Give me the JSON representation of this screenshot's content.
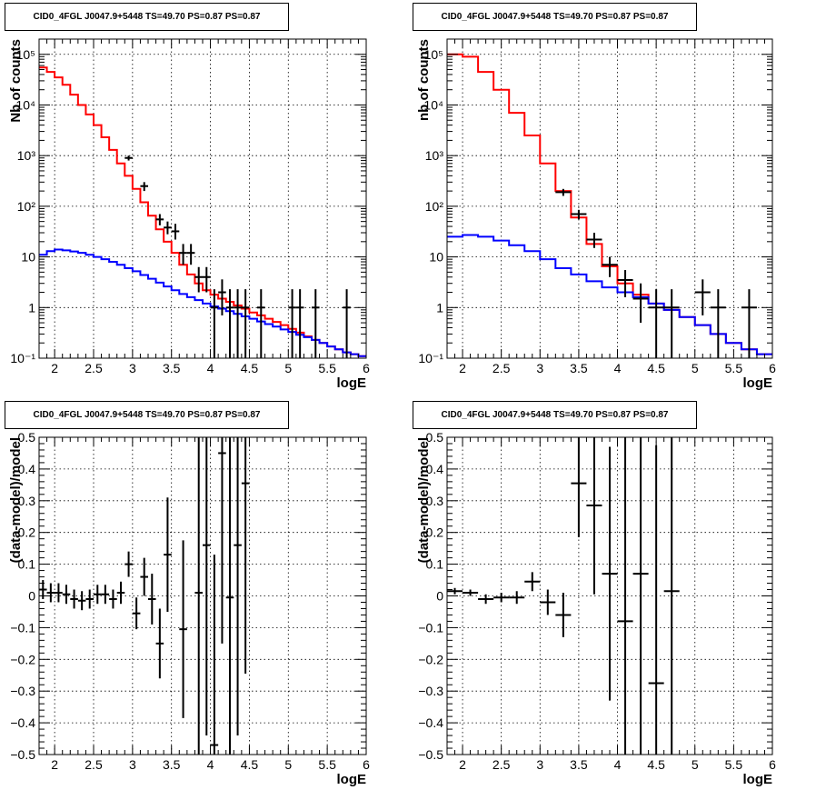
{
  "chart_data": [
    {
      "type": "line",
      "panel": "top-left",
      "title": "CID0_4FGL J0047.9+5448 TS=49.70 PS=0.87 PS=0.87",
      "xlabel": "logE",
      "ylabel": "Nb of counts",
      "xlim": [
        1.8,
        6
      ],
      "ylim": [
        0.1,
        200000
      ],
      "yscale": "log",
      "grid": true,
      "x_ticks": [
        "2",
        "2.5",
        "3",
        "3.5",
        "4",
        "4.5",
        "5",
        "5.5",
        "6"
      ],
      "y_ticks": [
        "10⁻¹",
        "1",
        "10",
        "10²",
        "10³",
        "10⁴",
        "10⁵"
      ],
      "series": [
        {
          "style": "step",
          "color": "#ff0000",
          "edges": [
            1.8,
            1.9,
            2.0,
            2.1,
            2.2,
            2.3,
            2.4,
            2.5,
            2.6,
            2.7,
            2.8,
            2.9,
            3.0,
            3.1,
            3.2,
            3.3,
            3.4,
            3.5,
            3.6,
            3.7,
            3.8,
            3.9,
            4.0,
            4.1,
            4.2,
            4.3,
            4.4,
            4.5,
            4.6,
            4.7,
            4.8,
            4.9,
            5.0,
            5.1,
            5.2,
            5.3,
            5.4,
            5.5,
            5.6,
            5.7,
            5.8,
            5.9,
            6.0
          ],
          "values": [
            55000,
            45000,
            35000,
            25000,
            16000,
            10000,
            6500,
            4000,
            2300,
            1300,
            700,
            400,
            220,
            120,
            65,
            35,
            20,
            12,
            7,
            4.5,
            3,
            2.2,
            1.8,
            1.5,
            1.3,
            1.1,
            0.95,
            0.8,
            0.7,
            0.6,
            0.52,
            0.45,
            0.38,
            0.32,
            0.27,
            0.23,
            0.2,
            0.17,
            0.15,
            0.13,
            0.12,
            0.11
          ]
        },
        {
          "style": "step",
          "color": "#0000ff",
          "edges": [
            1.8,
            1.9,
            2.0,
            2.1,
            2.2,
            2.3,
            2.4,
            2.5,
            2.6,
            2.7,
            2.8,
            2.9,
            3.0,
            3.1,
            3.2,
            3.3,
            3.4,
            3.5,
            3.6,
            3.7,
            3.8,
            3.9,
            4.0,
            4.1,
            4.2,
            4.3,
            4.4,
            4.5,
            4.6,
            4.7,
            4.8,
            4.9,
            5.0,
            5.1,
            5.2,
            5.3,
            5.4,
            5.5,
            5.6,
            5.7,
            5.8,
            5.9,
            6.0
          ],
          "values": [
            11,
            13,
            14,
            13.5,
            12.8,
            12,
            11,
            10,
            9,
            8,
            7,
            6,
            5.2,
            4.4,
            3.7,
            3.1,
            2.6,
            2.2,
            1.85,
            1.6,
            1.4,
            1.2,
            1.05,
            0.95,
            0.85,
            0.75,
            0.67,
            0.6,
            0.53,
            0.47,
            0.42,
            0.37,
            0.33,
            0.29,
            0.26,
            0.23,
            0.2,
            0.17,
            0.15,
            0.13,
            0.12,
            0.11
          ]
        },
        {
          "style": "points",
          "color": "#000000",
          "x": [
            2.95,
            3.15,
            3.35,
            3.45,
            3.55,
            3.65,
            3.75,
            3.85,
            3.95,
            4.05,
            4.15,
            4.25,
            4.35,
            4.45,
            4.65,
            5.05,
            5.15,
            5.35,
            5.75
          ],
          "xerr": 0.05,
          "y": [
            900,
            250,
            55,
            38,
            32,
            12,
            12,
            4,
            4,
            1,
            2,
            1,
            1,
            1,
            1,
            1,
            1,
            1,
            1
          ],
          "ylow": [
            800,
            200,
            42,
            28,
            22,
            7,
            7,
            2,
            2,
            0.1,
            0.7,
            0.1,
            0.1,
            0.1,
            0.1,
            0.1,
            0.1,
            0.1,
            0.1
          ],
          "yhigh": [
            1000,
            300,
            70,
            50,
            45,
            18,
            18,
            6.3,
            6.3,
            2.3,
            3.6,
            2.3,
            2.3,
            2.3,
            2.3,
            2.3,
            2.3,
            2.3,
            2.3
          ]
        }
      ]
    },
    {
      "type": "line",
      "panel": "top-right",
      "title": "CID0_4FGL J0047.9+5448 TS=49.70 PS=0.87 PS=0.87",
      "xlabel": "logE",
      "ylabel": "nb of counts",
      "xlim": [
        1.8,
        6
      ],
      "ylim": [
        0.1,
        200000
      ],
      "yscale": "log",
      "grid": true,
      "x_ticks": [
        "2",
        "2.5",
        "3",
        "3.5",
        "4",
        "4.5",
        "5",
        "5.5",
        "6"
      ],
      "y_ticks": [
        "10⁻¹",
        "1",
        "10",
        "10²",
        "10³",
        "10⁴",
        "10⁵"
      ],
      "series": [
        {
          "style": "step",
          "color": "#ff0000",
          "edges": [
            1.8,
            2.0,
            2.2,
            2.4,
            2.6,
            2.8,
            3.0,
            3.2,
            3.4,
            3.6,
            3.8,
            4.0,
            4.2,
            4.4,
            4.6,
            4.8,
            5.0,
            5.2,
            5.4,
            5.6,
            5.8,
            6.0
          ],
          "values": [
            100000,
            90000,
            45000,
            20000,
            7000,
            2500,
            700,
            200,
            60,
            18,
            6.5,
            3,
            1.8,
            1.2,
            0.9,
            0.65,
            0.45,
            0.3,
            0.2,
            0.15,
            0.12
          ],
          "values_note": ""
        },
        {
          "style": "step",
          "color": "#0000ff",
          "edges": [
            1.8,
            2.0,
            2.2,
            2.4,
            2.6,
            2.8,
            3.0,
            3.2,
            3.4,
            3.6,
            3.8,
            4.0,
            4.2,
            4.4,
            4.6,
            4.8,
            5.0,
            5.2,
            5.4,
            5.6,
            5.8,
            6.0
          ],
          "values": [
            25,
            27,
            25,
            21,
            17,
            13,
            9,
            6,
            4.5,
            3.3,
            2.5,
            2,
            1.6,
            1.2,
            0.9,
            0.65,
            0.45,
            0.3,
            0.2,
            0.15,
            0.12
          ]
        },
        {
          "style": "points",
          "color": "#000000",
          "x": [
            3.3,
            3.5,
            3.7,
            3.9,
            4.1,
            4.3,
            4.5,
            4.7,
            5.1,
            5.3,
            5.7
          ],
          "xerr": 0.1,
          "y": [
            190,
            70,
            22,
            7,
            3.5,
            1.5,
            1,
            1,
            2,
            1,
            1
          ],
          "ylow": [
            160,
            55,
            15,
            4,
            1.6,
            0.5,
            0.1,
            0.1,
            0.7,
            0.1,
            0.1
          ],
          "yhigh": [
            220,
            85,
            30,
            10,
            5.5,
            3,
            2.3,
            2.3,
            3.6,
            2.3,
            2.3
          ]
        }
      ]
    },
    {
      "type": "scatter",
      "panel": "bottom-left",
      "title": "CID0_4FGL J0047.9+5448 TS=49.70 PS=0.87 PS=0.87",
      "xlabel": "logE",
      "ylabel": "(data-model)/model",
      "xlim": [
        1.8,
        6
      ],
      "ylim": [
        -0.5,
        0.5
      ],
      "grid": true,
      "x_ticks": [
        "2",
        "2.5",
        "3",
        "3.5",
        "4",
        "4.5",
        "5",
        "5.5",
        "6"
      ],
      "y_ticks": [
        "−0.5",
        "−0.4",
        "−0.3",
        "−0.2",
        "−0.1",
        "0",
        "0.1",
        "0.2",
        "0.3",
        "0.4",
        "0.5"
      ],
      "series": [
        {
          "style": "points",
          "color": "#000000",
          "xerr": 0.05,
          "x": [
            1.85,
            1.95,
            2.05,
            2.15,
            2.25,
            2.35,
            2.45,
            2.55,
            2.65,
            2.75,
            2.85,
            2.95,
            3.05,
            3.15,
            3.25,
            3.35,
            3.45,
            3.65,
            3.85,
            3.95,
            4.05,
            4.15,
            4.25,
            4.35,
            4.45
          ],
          "y": [
            0.02,
            0.01,
            0.01,
            0.005,
            -0.01,
            -0.015,
            -0.01,
            0.005,
            0.005,
            -0.01,
            0.01,
            0.1,
            -0.055,
            0.06,
            -0.01,
            -0.15,
            0.13,
            -0.105,
            0.01,
            0.16,
            -0.47,
            0.45,
            -0.005,
            0.16,
            0.355
          ],
          "yerr": [
            0.03,
            0.03,
            0.03,
            0.03,
            0.03,
            0.03,
            0.03,
            0.03,
            0.03,
            0.03,
            0.035,
            0.04,
            0.05,
            0.06,
            0.08,
            0.11,
            0.18,
            0.28,
            0.6,
            0.6,
            0.6,
            0.6,
            0.6,
            0.6,
            0.6
          ]
        }
      ]
    },
    {
      "type": "scatter",
      "panel": "bottom-right",
      "title": "CID0_4FGL J0047.9+5448 TS=49.70 PS=0.87 PS=0.87",
      "xlabel": "logE",
      "ylabel": "(data-model)/model",
      "xlim": [
        1.8,
        6
      ],
      "ylim": [
        -0.5,
        0.5
      ],
      "grid": true,
      "x_ticks": [
        "2",
        "2.5",
        "3",
        "3.5",
        "4",
        "4.5",
        "5",
        "5.5",
        "6"
      ],
      "y_ticks": [
        "−0.5",
        "−0.4",
        "−0.3",
        "−0.2",
        "−0.1",
        "0",
        "0.1",
        "0.2",
        "0.3",
        "0.4",
        "0.5"
      ],
      "series": [
        {
          "style": "points",
          "color": "#000000",
          "xerr": 0.1,
          "x": [
            1.9,
            2.1,
            2.3,
            2.5,
            2.7,
            2.9,
            3.1,
            3.3,
            3.5,
            3.7,
            3.9,
            4.1,
            4.3,
            4.5,
            4.7
          ],
          "y": [
            0.015,
            0.01,
            -0.01,
            -0.005,
            -0.005,
            0.045,
            -0.02,
            -0.06,
            0.355,
            0.285,
            0.07,
            -0.08,
            0.07,
            -0.275,
            0.015
          ],
          "yerr": [
            0.01,
            0.01,
            0.015,
            0.015,
            0.02,
            0.03,
            0.04,
            0.07,
            0.17,
            0.28,
            0.4,
            0.6,
            0.6,
            0.75,
            0.75
          ]
        }
      ]
    }
  ]
}
